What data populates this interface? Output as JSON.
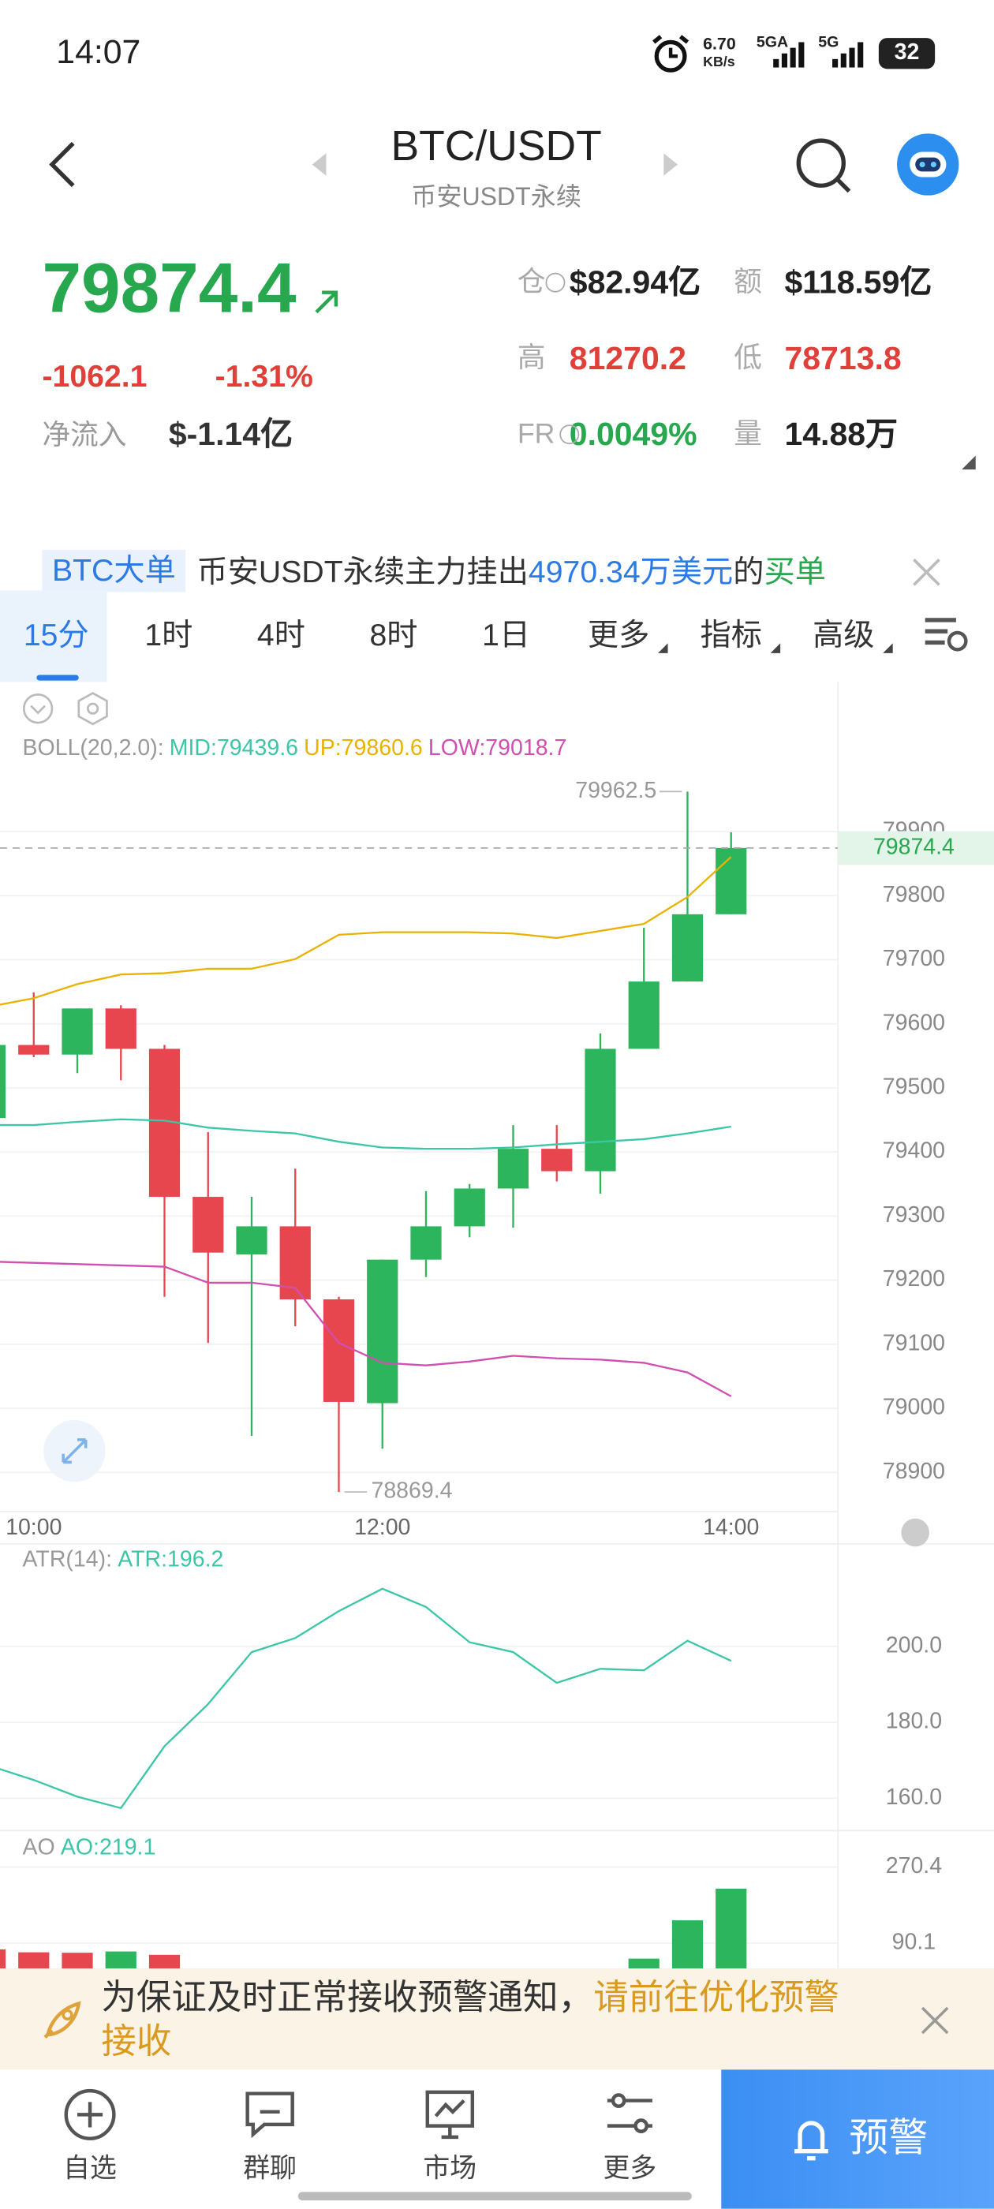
{
  "status_bar": {
    "time": "14:07",
    "speed": "6.70",
    "speed_unit": "KB/s",
    "network_1": "5GA",
    "network_2": "5G",
    "battery": "32"
  },
  "header": {
    "title": "BTC/USDT",
    "subtitle": "币安USDT永续"
  },
  "ticker": {
    "price": "79874.4",
    "change": "-1062.1",
    "change_pct": "-1.31%",
    "net_inflow_label": "净流入",
    "net_inflow": "$-1.14亿",
    "stats": [
      {
        "label": "仓",
        "value": "$82.94亿"
      },
      {
        "label": "额",
        "value": "$118.59亿"
      },
      {
        "label": "高",
        "value": "81270.2"
      },
      {
        "label": "低",
        "value": "78713.8"
      },
      {
        "label": "FR",
        "value": "0.0049%"
      },
      {
        "label": "量",
        "value": "14.88万"
      }
    ]
  },
  "banner": {
    "tag": "BTC大单",
    "text": "币安USDT永续主力挂出",
    "amount": "4970.34万美元",
    "text_2": "的",
    "side": "买单"
  },
  "tabs": [
    "15分",
    "1时",
    "4时",
    "8时",
    "1日",
    "更多",
    "指标",
    "高级"
  ],
  "chart": {
    "type": "candlestick",
    "categories": [
      null,
      "10:00",
      null,
      null,
      null,
      null,
      null,
      null,
      null,
      "12:00",
      null,
      null,
      null,
      null,
      null,
      null,
      null,
      "14:00"
    ],
    "candles": [
      {
        "open": 79453,
        "high": 79580,
        "low": 79440,
        "close": 79567
      },
      {
        "open": 79567,
        "high": 79649,
        "low": 79548,
        "close": 79552
      },
      {
        "open": 79552,
        "high": 79624,
        "low": 79523,
        "close": 79624
      },
      {
        "open": 79624,
        "high": 79629,
        "low": 79512,
        "close": 79561
      },
      {
        "open": 79561,
        "high": 79567,
        "low": 79174,
        "close": 79330
      },
      {
        "open": 79330,
        "high": 79431,
        "low": 79102,
        "close": 79243
      },
      {
        "open": 79240,
        "high": 79330,
        "low": 78957,
        "close": 79284
      },
      {
        "open": 79284,
        "high": 79374,
        "low": 79128,
        "close": 79170
      },
      {
        "open": 79170,
        "high": 79174,
        "low": 78869.4,
        "close": 79010
      },
      {
        "open": 79008,
        "high": 79232,
        "low": 78937,
        "close": 79232
      },
      {
        "open": 79232,
        "high": 79339,
        "low": 79205,
        "close": 79284
      },
      {
        "open": 79284,
        "high": 79350,
        "low": 79267,
        "close": 79343
      },
      {
        "open": 79343,
        "high": 79442,
        "low": 79282,
        "close": 79405
      },
      {
        "open": 79405,
        "high": 79442,
        "low": 79354,
        "close": 79370
      },
      {
        "open": 79370,
        "high": 79585,
        "low": 79335,
        "close": 79561
      },
      {
        "open": 79561,
        "high": 79750,
        "low": 79561,
        "close": 79666
      },
      {
        "open": 79666,
        "high": 79962.5,
        "low": 79666,
        "close": 79771
      },
      {
        "open": 79771,
        "high": 79899,
        "low": 79771,
        "close": 79874.4
      }
    ],
    "ylim": [
      78839,
      79980
    ],
    "yticks": [
      78900,
      79000,
      79100,
      79200,
      79300,
      79400,
      79500,
      79600,
      79700,
      79800,
      79900
    ],
    "up_color": "#2db55d",
    "down_color": "#e8464f",
    "boll": {
      "label": "BOLL(20,2.0):",
      "mid_label": "MID:79439.6",
      "up_label": "UP:79860.6",
      "low_label": "LOW:79018.7",
      "mid_color": "#3cc6a8",
      "up_color": "#e9b200",
      "low_color": "#d04fb1",
      "up": [
        79627,
        79640,
        79662,
        79677,
        79679,
        79686,
        79686,
        79701,
        79739,
        79743,
        79743,
        79743,
        79741,
        79734,
        79745,
        79756,
        79798,
        79860.6
      ],
      "mid": [
        79442,
        79442,
        79447,
        79451,
        79449,
        79438,
        79433,
        79429,
        79416,
        79407,
        79405,
        79405,
        79407,
        79412,
        79416,
        79420,
        79429,
        79439.6
      ],
      "low": [
        79229,
        79227,
        79225,
        79223,
        79221,
        79196,
        79196,
        79188,
        79102,
        79071,
        79067,
        79073,
        79082,
        79078,
        79076,
        79071,
        79056,
        79018.7
      ]
    },
    "atr": {
      "label": "ATR(14):",
      "value_label": "ATR:196.2",
      "color": "#3cc6a8",
      "values": [
        168.5,
        164.8,
        160.4,
        157.4,
        173.7,
        184.8,
        198.5,
        202.2,
        209.3,
        215.2,
        210.4,
        201.1,
        198.5,
        190.4,
        194.1,
        193.7,
        201.5,
        196.2
      ],
      "ylim": [
        152.2,
        226.3
      ],
      "yticks": [
        {
          "value": 160,
          "label": "160.0"
        },
        {
          "value": 180,
          "label": "180.0"
        },
        {
          "value": 200,
          "label": "200.0"
        }
      ]
    },
    "ao": {
      "label": "AO",
      "value_label": "AO:219.1",
      "color": "#3cc6a8",
      "values": [
        75,
        68,
        67,
        70,
        62,
        null,
        null,
        null,
        null,
        null,
        null,
        null,
        null,
        null,
        null,
        53,
        144,
        219.1
      ],
      "colors": [
        "#e8464f",
        "#e8464f",
        "#e8464f",
        "#2db55d",
        "#e8464f",
        null,
        null,
        null,
        null,
        null,
        null,
        null,
        null,
        null,
        null,
        "#2db55d",
        "#2db55d",
        "#2db55d"
      ],
      "ylim": [
        -204,
        347
      ],
      "yticks": [
        90.1,
        270.4
      ]
    }
  },
  "notice": {
    "text": "为保证及时正常接收预警通知，",
    "link": "请前往优化预警接收"
  },
  "nav": [
    "自选",
    "群聊",
    "市场",
    "更多"
  ],
  "alert_button": "预警"
}
